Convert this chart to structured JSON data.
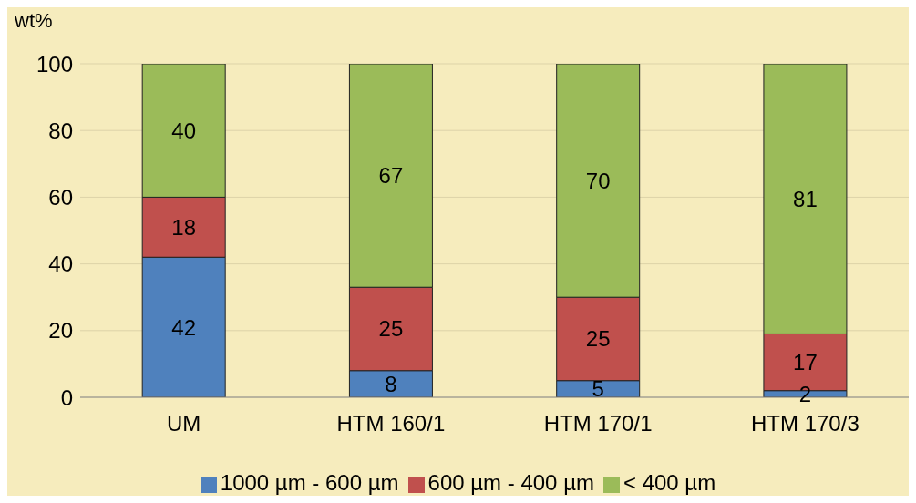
{
  "chart_data": {
    "type": "bar",
    "ylabel": "wt%",
    "categories": [
      "UM",
      "HTM 160/1",
      "HTM 170/1",
      "HTM 170/3"
    ],
    "series": [
      {
        "name": "1000 µm - 600 µm",
        "color": "#4f81bd",
        "values": [
          42,
          8,
          5,
          2
        ]
      },
      {
        "name": "600 µm - 400 µm",
        "color": "#c0504d",
        "values": [
          18,
          25,
          25,
          17
        ]
      },
      {
        "name": "< 400 µm",
        "color": "#9bbb59",
        "values": [
          40,
          67,
          70,
          81
        ]
      }
    ],
    "stacked": true,
    "ylim": [
      0,
      100
    ],
    "yticks": [
      0,
      20,
      40,
      60,
      80,
      100
    ],
    "grid": "y",
    "legend": "bottom",
    "data_labels": true
  }
}
